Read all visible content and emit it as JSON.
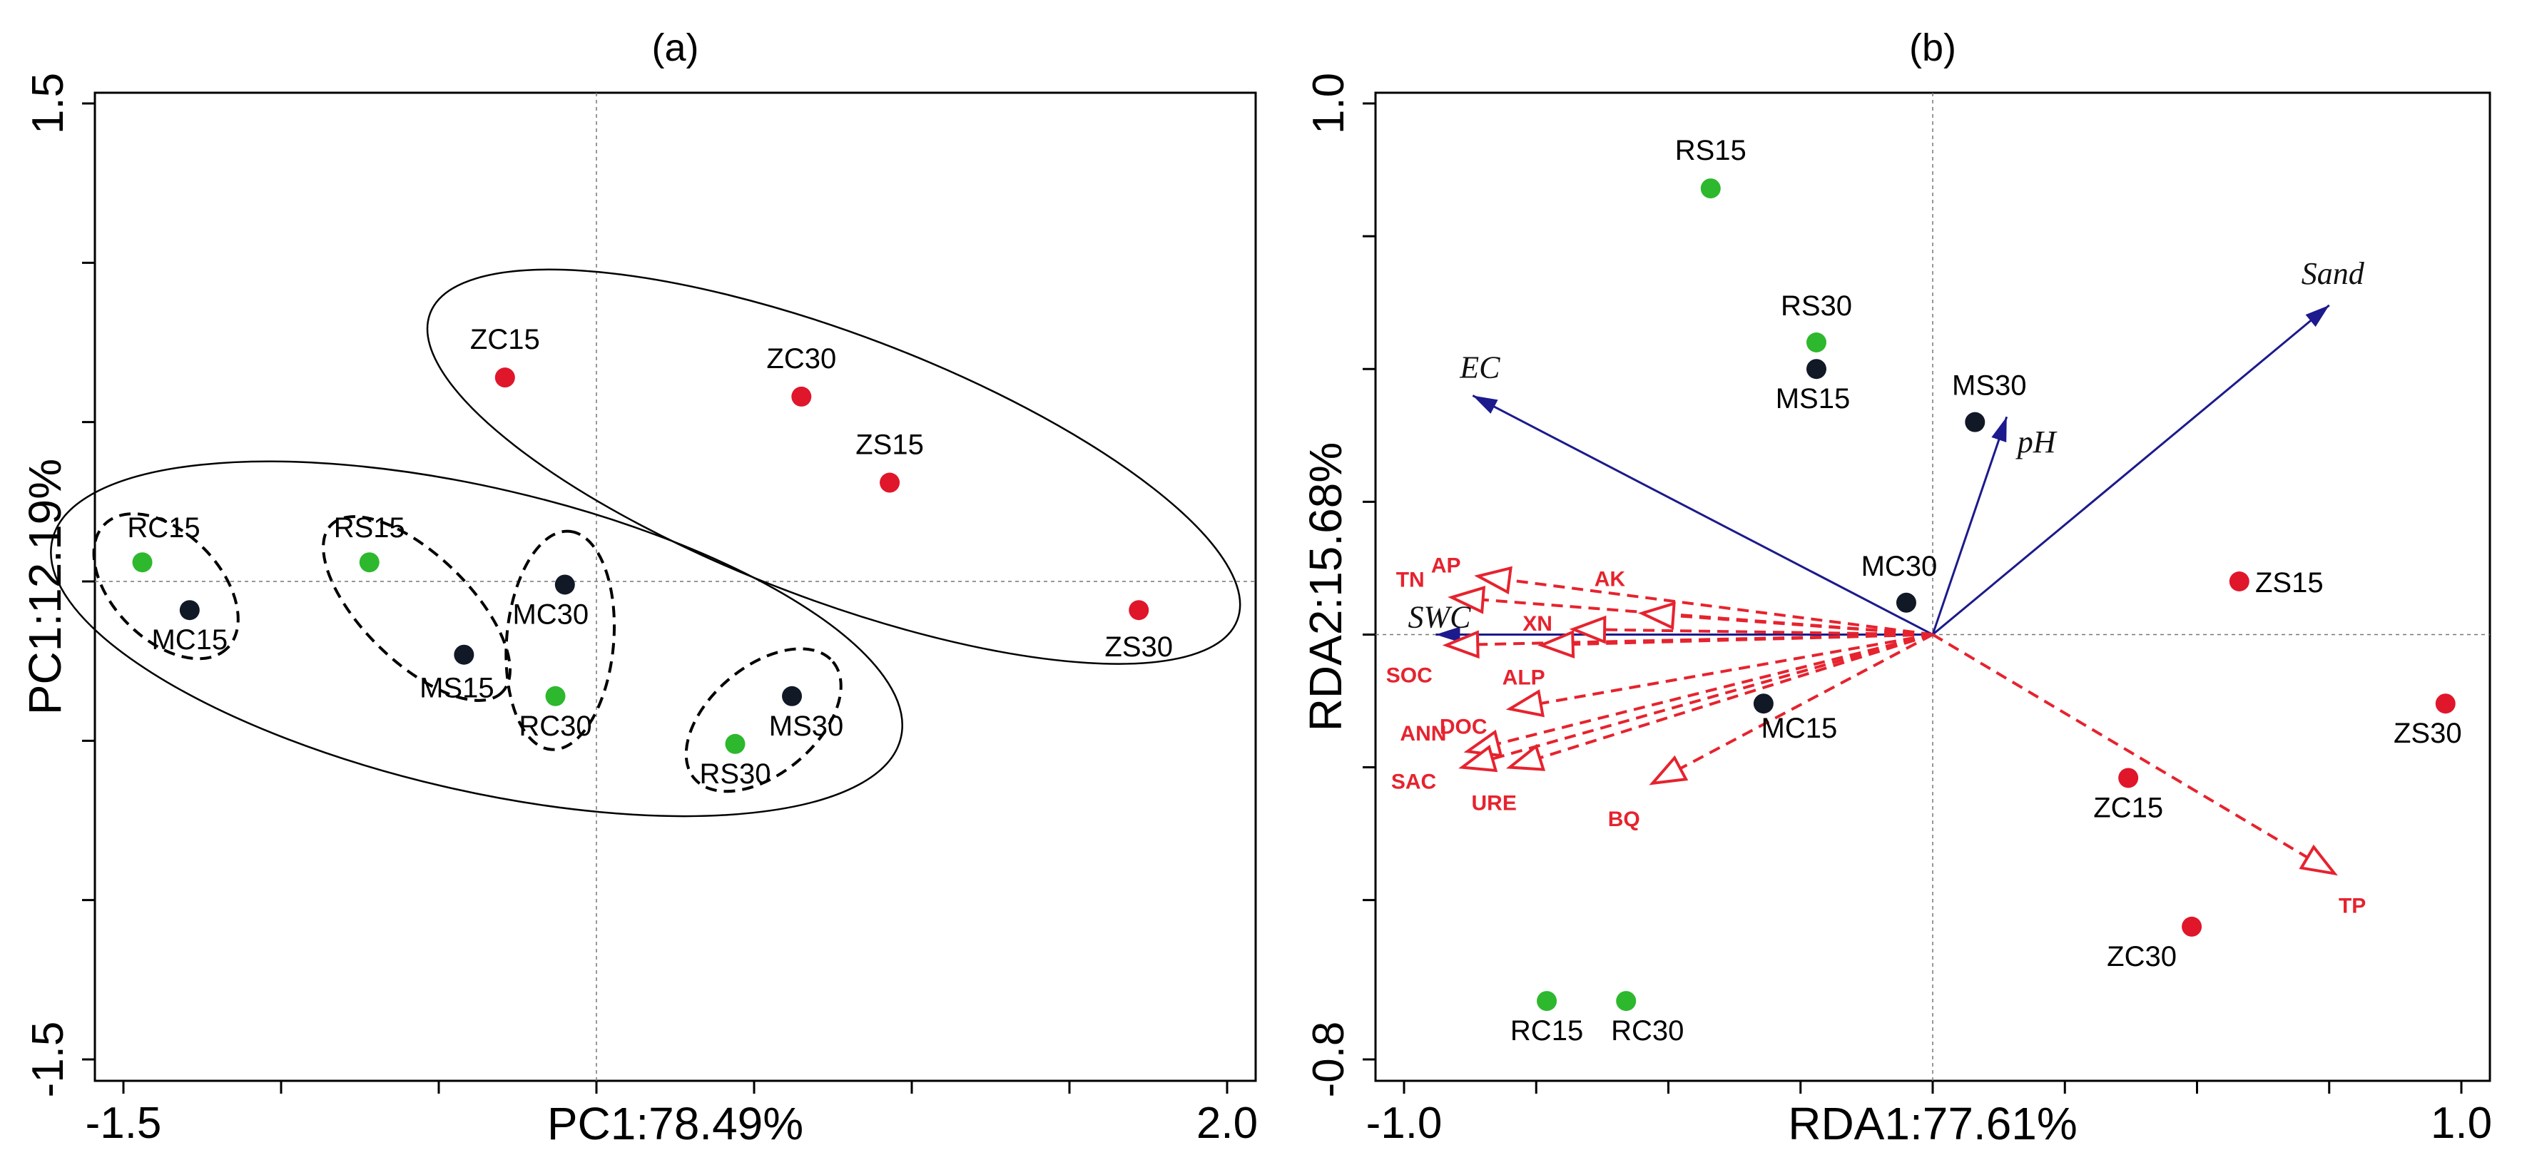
{
  "chart_data": [
    {
      "panel": "(a)",
      "type": "scatter",
      "title": "(a)",
      "xlabel": "PC1:78.49%",
      "ylabel": "PC1:12.19%",
      "xlim": [
        -1.5,
        2.0
      ],
      "ylim": [
        -1.5,
        1.5
      ],
      "x_tick_labels": [
        "-1.5",
        "2.0"
      ],
      "y_tick_labels": [
        "1.5",
        "-1.5"
      ],
      "zero_lines": true,
      "points": [
        {
          "label": "RC15",
          "x": -1.44,
          "y": 0.06,
          "color": "#2db82d"
        },
        {
          "label": "MC15",
          "x": -1.29,
          "y": -0.09,
          "color": "#111826"
        },
        {
          "label": "RS15",
          "x": -0.72,
          "y": 0.06,
          "color": "#2db82d"
        },
        {
          "label": "MS15",
          "x": -0.42,
          "y": -0.23,
          "color": "#111826"
        },
        {
          "label": "MC30",
          "x": -0.1,
          "y": -0.01,
          "color": "#111826"
        },
        {
          "label": "RC30",
          "x": -0.13,
          "y": -0.36,
          "color": "#2db82d"
        },
        {
          "label": "ZC15",
          "x": -0.29,
          "y": 0.64,
          "color": "#e0162b"
        },
        {
          "label": "ZC30",
          "x": 0.65,
          "y": 0.58,
          "color": "#e0162b"
        },
        {
          "label": "ZS15",
          "x": 0.93,
          "y": 0.31,
          "color": "#e0162b"
        },
        {
          "label": "ZS30",
          "x": 1.72,
          "y": -0.09,
          "color": "#e0162b"
        },
        {
          "label": "MS30",
          "x": 0.62,
          "y": -0.36,
          "color": "#111826"
        },
        {
          "label": "RS30",
          "x": 0.44,
          "y": -0.51,
          "color": "#2db82d"
        }
      ],
      "ellipse_groups": [
        {
          "style": "solid",
          "members": [
            "ZC15",
            "ZC30",
            "ZS15",
            "ZS30"
          ]
        },
        {
          "style": "solid",
          "members": [
            "RC15",
            "MC15",
            "RS15",
            "MS15",
            "MC30",
            "RC30",
            "MS30",
            "RS30"
          ]
        },
        {
          "style": "dashed",
          "members": [
            "RC15",
            "MC15"
          ]
        },
        {
          "style": "dashed",
          "members": [
            "RS15",
            "MS15"
          ]
        },
        {
          "style": "dashed",
          "members": [
            "MC30",
            "RC30"
          ]
        },
        {
          "style": "dashed",
          "members": [
            "MS30",
            "RS30"
          ]
        }
      ]
    },
    {
      "panel": "(b)",
      "type": "scatter",
      "title": "(b)",
      "xlabel": "RDA1:77.61%",
      "ylabel": "RDA2:15.68%",
      "xlim": [
        -1.0,
        1.0
      ],
      "ylim": [
        -0.8,
        1.0
      ],
      "x_tick_labels": [
        "-1.0",
        "1.0"
      ],
      "y_tick_labels": [
        "1.0",
        "-0.8"
      ],
      "zero_lines": true,
      "points": [
        {
          "label": "RS15",
          "x": -0.42,
          "y": 0.84,
          "color": "#2db82d"
        },
        {
          "label": "RS30",
          "x": -0.22,
          "y": 0.55,
          "color": "#2db82d"
        },
        {
          "label": "MS15",
          "x": -0.22,
          "y": 0.5,
          "color": "#111826"
        },
        {
          "label": "MS30",
          "x": 0.08,
          "y": 0.4,
          "color": "#111826"
        },
        {
          "label": "MC30",
          "x": -0.05,
          "y": 0.06,
          "color": "#111826"
        },
        {
          "label": "MC15",
          "x": -0.32,
          "y": -0.13,
          "color": "#111826"
        },
        {
          "label": "ZS15",
          "x": 0.58,
          "y": 0.1,
          "color": "#e0162b"
        },
        {
          "label": "ZS30",
          "x": 0.97,
          "y": -0.13,
          "color": "#e0162b"
        },
        {
          "label": "ZC15",
          "x": 0.37,
          "y": -0.27,
          "color": "#e0162b"
        },
        {
          "label": "ZC30",
          "x": 0.49,
          "y": -0.55,
          "color": "#e0162b"
        },
        {
          "label": "RC15",
          "x": -0.73,
          "y": -0.69,
          "color": "#2db82d"
        },
        {
          "label": "RC30",
          "x": -0.58,
          "y": -0.69,
          "color": "#2db82d"
        }
      ],
      "environment_vectors": [
        {
          "label": "Sand",
          "x": 0.75,
          "y": 0.62
        },
        {
          "label": "EC",
          "x": -0.87,
          "y": 0.45
        },
        {
          "label": "pH",
          "x": 0.14,
          "y": 0.41
        },
        {
          "label": "SWC",
          "x": -0.94,
          "y": 0.0
        }
      ],
      "soil_property_vectors": [
        {
          "label": "AP",
          "x": -0.86,
          "y": 0.11
        },
        {
          "label": "TN",
          "x": -0.91,
          "y": 0.07
        },
        {
          "label": "AK",
          "x": -0.55,
          "y": 0.04
        },
        {
          "label": "XN",
          "x": -0.68,
          "y": 0.01
        },
        {
          "label": "SOC",
          "x": -0.92,
          "y": -0.02
        },
        {
          "label": "ALP",
          "x": -0.74,
          "y": -0.02
        },
        {
          "label": "DOC",
          "x": -0.8,
          "y": -0.14
        },
        {
          "label": "ANN",
          "x": -0.88,
          "y": -0.22
        },
        {
          "label": "SAC",
          "x": -0.89,
          "y": -0.25
        },
        {
          "label": "URE",
          "x": -0.8,
          "y": -0.25
        },
        {
          "label": "BQ",
          "x": -0.53,
          "y": -0.28
        },
        {
          "label": "TP",
          "x": 0.76,
          "y": -0.45
        }
      ]
    }
  ]
}
